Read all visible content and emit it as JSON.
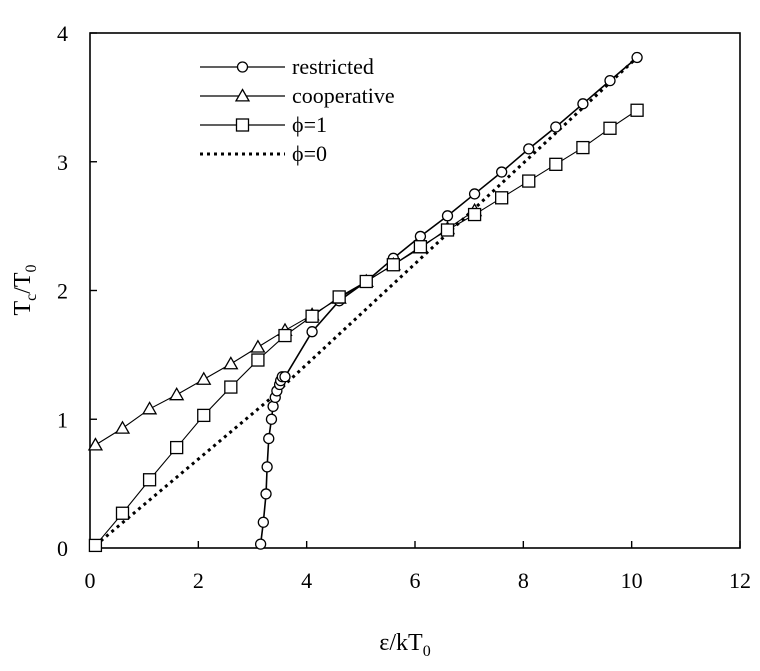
{
  "chart_data": {
    "type": "line",
    "title": "",
    "xlabel": {
      "main": "ε/kT",
      "sub": "0"
    },
    "ylabel": {
      "main": "T",
      "sub1": "c",
      "mid": "/T",
      "sub2": "0"
    },
    "xlim": [
      0,
      12
    ],
    "ylim": [
      0,
      4
    ],
    "xticks": [
      0,
      2,
      4,
      6,
      8,
      10,
      12
    ],
    "yticks": [
      0,
      1,
      2,
      3,
      4
    ],
    "grid": false,
    "legend_position": "top-left",
    "series": [
      {
        "name": "restricted",
        "marker": "circle",
        "line": "solid",
        "x": [
          3.15,
          3.2,
          3.25,
          3.27,
          3.3,
          3.35,
          3.38,
          3.42,
          3.45,
          3.5,
          3.52,
          3.55,
          3.6,
          4.1,
          4.6,
          5.1,
          5.6,
          6.1,
          6.6,
          7.1,
          7.6,
          8.1,
          8.6,
          9.1,
          9.6,
          10.1
        ],
        "y": [
          0.03,
          0.2,
          0.42,
          0.63,
          0.85,
          1.0,
          1.1,
          1.17,
          1.22,
          1.27,
          1.3,
          1.33,
          1.33,
          1.68,
          1.92,
          2.07,
          2.25,
          2.42,
          2.58,
          2.75,
          2.92,
          3.1,
          3.27,
          3.45,
          3.63,
          3.81
        ]
      },
      {
        "name": "cooperative",
        "marker": "triangle",
        "line": "solid",
        "x": [
          0.1,
          0.6,
          1.1,
          1.6,
          2.1,
          2.6,
          3.1,
          3.6,
          4.1,
          4.6,
          5.1,
          5.6,
          6.1,
          6.6,
          7.1
        ],
        "y": [
          0.8,
          0.93,
          1.08,
          1.19,
          1.31,
          1.43,
          1.56,
          1.69,
          1.81,
          1.94,
          2.07,
          2.2,
          2.33,
          2.48,
          2.62
        ]
      },
      {
        "name": "ϕ=1",
        "marker": "square",
        "line": "solid",
        "x": [
          0.1,
          0.6,
          1.1,
          1.6,
          2.1,
          2.6,
          3.1,
          3.6,
          4.1,
          4.6,
          5.1,
          5.6,
          6.1,
          6.6,
          7.1,
          7.6,
          8.1,
          8.6,
          9.1,
          9.6,
          10.1
        ],
        "y": [
          0.02,
          0.27,
          0.53,
          0.78,
          1.03,
          1.25,
          1.46,
          1.65,
          1.8,
          1.95,
          2.07,
          2.2,
          2.34,
          2.47,
          2.59,
          2.72,
          2.85,
          2.98,
          3.11,
          3.26,
          3.4
        ]
      },
      {
        "name": "ϕ=0",
        "marker": "none",
        "line": "dotted",
        "x": [
          0.1,
          3.5,
          3.6,
          10.1
        ],
        "y": [
          0.02,
          1.22,
          1.27,
          3.81
        ]
      }
    ]
  }
}
